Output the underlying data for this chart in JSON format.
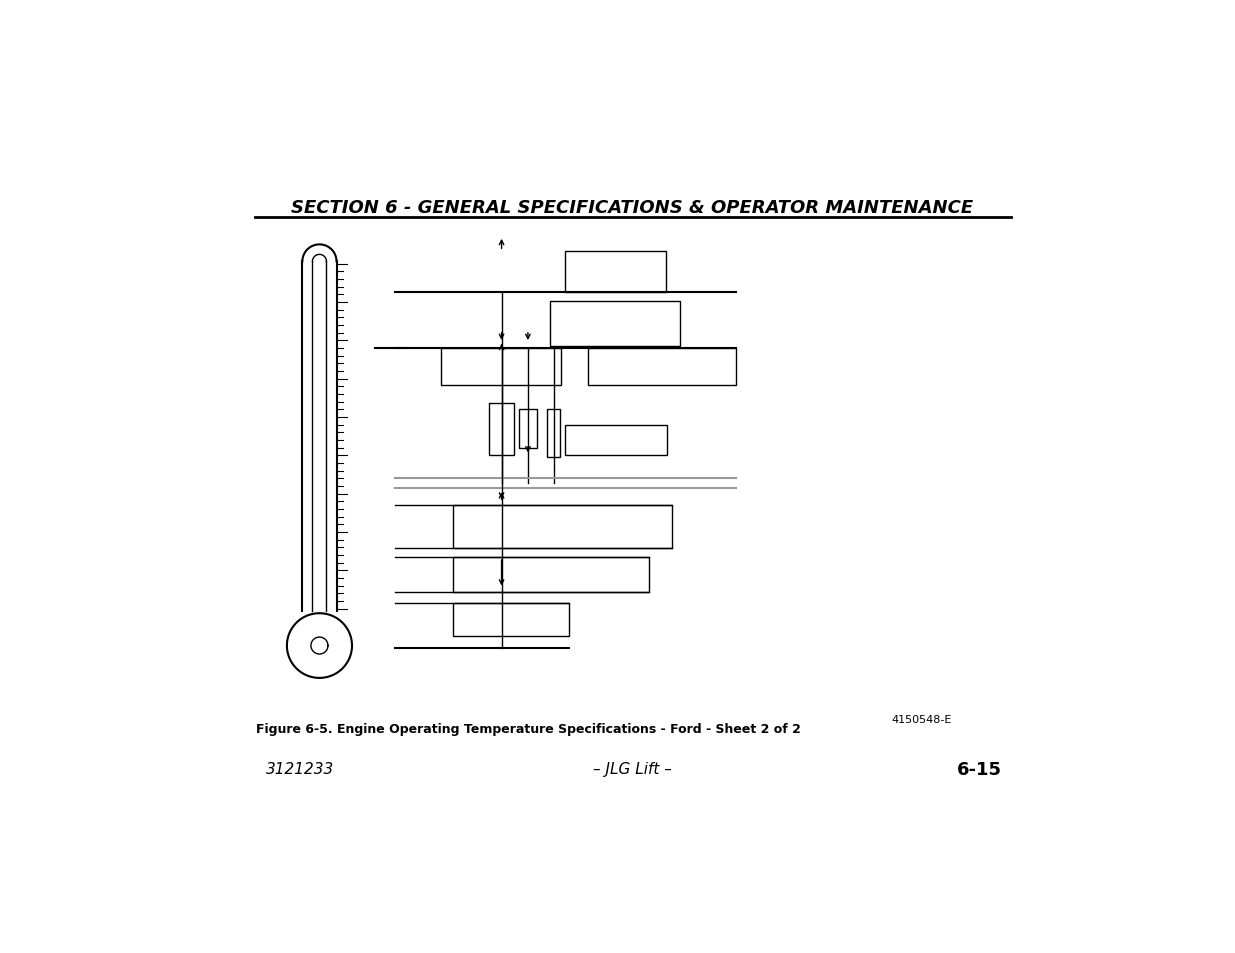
{
  "title": "SECTION 6 - GENERAL SPECIFICATIONS & OPERATOR MAINTENANCE",
  "figure_caption": "Figure 6-5. Engine Operating Temperature Specifications - Ford - Sheet 2 of 2",
  "part_number": "4150548-E",
  "left_text": "3121233",
  "center_text": "– JLG Lift –",
  "right_text": "6-15",
  "background": "#ffffff",
  "line_color": "#000000"
}
